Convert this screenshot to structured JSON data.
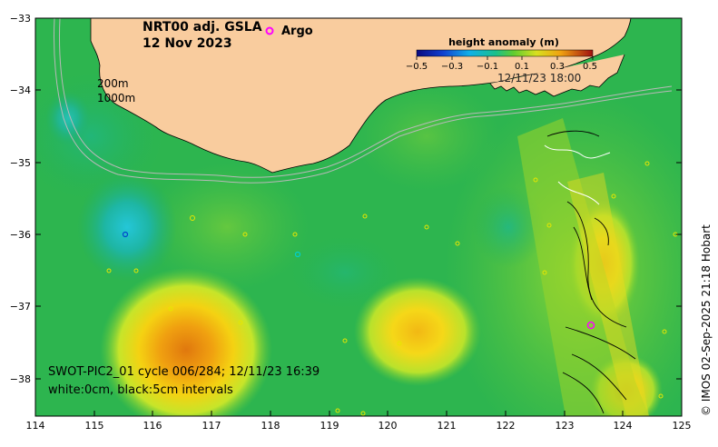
{
  "title": {
    "line1": "NRT00 adj. GSLA",
    "line2": "12 Nov 2023"
  },
  "legend": {
    "argo_label": "Argo",
    "argo_color": "#ff00ff"
  },
  "colorbar": {
    "title": "height anomaly (m)",
    "ticks": [
      "−0.5",
      "−0.3",
      "−0.1",
      "0.1",
      "0.3",
      "0.5"
    ]
  },
  "contour_legend": {
    "label_200": "200m",
    "label_1000": "1000m"
  },
  "timestamp": "12/11/23 18:00",
  "swot": {
    "line1": "SWOT-PIC2_01 cycle 006/284; 12/11/23 16:39",
    "line2": "white:0cm, black:5cm intervals"
  },
  "credit": "© IMOS 02-Sep-2025 21:18 Hobart",
  "axes": {
    "x_ticks": [
      "114",
      "115",
      "116",
      "117",
      "118",
      "119",
      "120",
      "121",
      "122",
      "123",
      "124",
      "125"
    ],
    "y_ticks": [
      "−33",
      "−34",
      "−35",
      "−36",
      "−37",
      "−38"
    ]
  },
  "colors": {
    "land": "#f9cc9e",
    "ocean_base": "#29b24d"
  }
}
